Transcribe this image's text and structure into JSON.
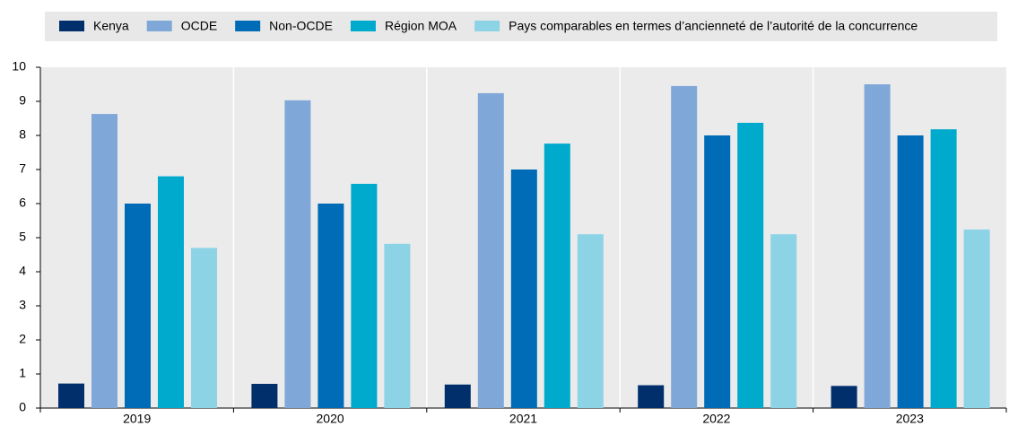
{
  "chart_data": {
    "type": "bar",
    "categories": [
      "2019",
      "2020",
      "2021",
      "2022",
      "2023"
    ],
    "series": [
      {
        "name": "Kenya",
        "color": "#002f6c",
        "values": [
          0.72,
          0.71,
          0.69,
          0.67,
          0.65
        ]
      },
      {
        "name": "OCDE",
        "color": "#7fa8d9",
        "values": [
          8.63,
          9.03,
          9.24,
          9.45,
          9.5
        ]
      },
      {
        "name": "Non-OCDE",
        "color": "#006bb6",
        "values": [
          6,
          6,
          7,
          8,
          8
        ]
      },
      {
        "name": "Région MOA",
        "color": "#00aacc",
        "values": [
          6.8,
          6.58,
          7.76,
          8.37,
          8.18
        ]
      },
      {
        "name": "Pays comparables en termes d’ancienneté de l’autorité de la concurrence",
        "color": "#8cd3e6",
        "values": [
          4.7,
          4.82,
          5.1,
          5.1,
          5.24
        ]
      }
    ],
    "ylim": [
      0,
      10
    ],
    "yticks": [
      0,
      1,
      2,
      3,
      4,
      5,
      6,
      7,
      8,
      9,
      10
    ],
    "legend": "top"
  }
}
